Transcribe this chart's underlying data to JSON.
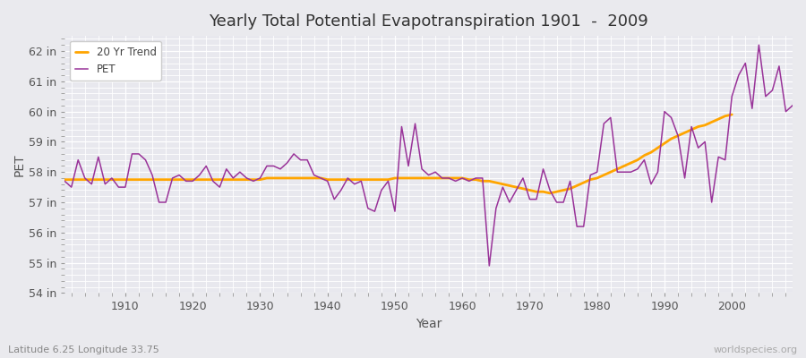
{
  "title": "Yearly Total Potential Evapotranspiration 1901  -  2009",
  "xlabel": "Year",
  "ylabel": "PET",
  "footnote_left": "Latitude 6.25 Longitude 33.75",
  "footnote_right": "worldspecies.org",
  "years": [
    1901,
    1902,
    1903,
    1904,
    1905,
    1906,
    1907,
    1908,
    1909,
    1910,
    1911,
    1912,
    1913,
    1914,
    1915,
    1916,
    1917,
    1918,
    1919,
    1920,
    1921,
    1922,
    1923,
    1924,
    1925,
    1926,
    1927,
    1928,
    1929,
    1930,
    1931,
    1932,
    1933,
    1934,
    1935,
    1936,
    1937,
    1938,
    1939,
    1940,
    1941,
    1942,
    1943,
    1944,
    1945,
    1946,
    1947,
    1948,
    1949,
    1950,
    1951,
    1952,
    1953,
    1954,
    1955,
    1956,
    1957,
    1958,
    1959,
    1960,
    1961,
    1962,
    1963,
    1964,
    1965,
    1966,
    1967,
    1968,
    1969,
    1970,
    1971,
    1972,
    1973,
    1974,
    1975,
    1976,
    1977,
    1978,
    1979,
    1980,
    1981,
    1982,
    1983,
    1984,
    1985,
    1986,
    1987,
    1988,
    1989,
    1990,
    1991,
    1992,
    1993,
    1994,
    1995,
    1996,
    1997,
    1998,
    1999,
    2000,
    2001,
    2002,
    2003,
    2004,
    2005,
    2006,
    2007,
    2008,
    2009
  ],
  "pet": [
    57.7,
    57.5,
    58.4,
    57.8,
    57.6,
    58.5,
    57.6,
    57.8,
    57.5,
    57.5,
    58.6,
    58.6,
    58.4,
    57.9,
    57.0,
    57.0,
    57.8,
    57.9,
    57.7,
    57.7,
    57.9,
    58.2,
    57.7,
    57.5,
    58.1,
    57.8,
    58.0,
    57.8,
    57.7,
    57.8,
    58.2,
    58.2,
    58.1,
    58.3,
    58.6,
    58.4,
    58.4,
    57.9,
    57.8,
    57.7,
    57.1,
    57.4,
    57.8,
    57.6,
    57.7,
    56.8,
    56.7,
    57.4,
    57.7,
    56.7,
    59.5,
    58.2,
    59.6,
    58.1,
    57.9,
    58.0,
    57.8,
    57.8,
    57.7,
    57.8,
    57.7,
    57.8,
    57.8,
    54.9,
    56.8,
    57.5,
    57.0,
    57.4,
    57.8,
    57.1,
    57.1,
    58.1,
    57.4,
    57.0,
    57.0,
    57.7,
    56.2,
    56.2,
    57.9,
    58.0,
    59.6,
    59.8,
    58.0,
    58.0,
    58.0,
    58.1,
    58.4,
    57.6,
    58.0,
    60.0,
    59.8,
    59.2,
    57.8,
    59.5,
    58.8,
    59.0,
    57.0,
    58.5,
    58.4,
    60.5,
    61.2,
    61.6,
    60.1,
    62.2,
    60.5,
    60.7,
    61.5,
    60.0,
    60.2
  ],
  "trend": [
    57.75,
    57.75,
    57.75,
    57.75,
    57.75,
    57.75,
    57.75,
    57.75,
    57.75,
    57.75,
    57.75,
    57.75,
    57.75,
    57.75,
    57.75,
    57.75,
    57.75,
    57.75,
    57.75,
    57.75,
    57.75,
    57.75,
    57.75,
    57.75,
    57.75,
    57.75,
    57.75,
    57.75,
    57.75,
    57.75,
    57.8,
    57.8,
    57.8,
    57.8,
    57.8,
    57.8,
    57.8,
    57.8,
    57.8,
    57.75,
    57.75,
    57.75,
    57.75,
    57.75,
    57.75,
    57.75,
    57.75,
    57.75,
    57.75,
    57.8,
    57.8,
    57.8,
    57.8,
    57.8,
    57.8,
    57.8,
    57.8,
    57.8,
    57.8,
    57.8,
    57.75,
    57.75,
    57.7,
    57.7,
    57.65,
    57.6,
    57.55,
    57.5,
    57.45,
    57.4,
    57.35,
    57.35,
    57.3,
    57.35,
    57.4,
    57.45,
    57.55,
    57.65,
    57.75,
    57.8,
    57.9,
    58.0,
    58.1,
    58.2,
    58.3,
    58.4,
    58.55,
    58.65,
    58.8,
    58.95,
    59.1,
    59.2,
    59.3,
    59.4,
    59.5,
    59.55,
    59.65,
    59.75,
    59.85,
    59.9,
    null,
    null,
    null,
    null,
    null,
    null,
    null,
    null,
    null
  ],
  "pet_color": "#993399",
  "trend_color": "#FFA500",
  "bg_color": "#EAEAEE",
  "plot_bg_color": "#E8E8EE",
  "grid_color": "#FFFFFF",
  "ylim": [
    54,
    62.5
  ],
  "yticks": [
    54,
    55,
    56,
    57,
    58,
    59,
    60,
    61,
    62
  ],
  "ytick_labels": [
    "54 in",
    "55 in",
    "56 in",
    "57 in",
    "58 in",
    "59 in",
    "60 in",
    "61 in",
    "62 in"
  ],
  "xticks": [
    1910,
    1920,
    1930,
    1940,
    1950,
    1960,
    1970,
    1980,
    1990,
    2000
  ],
  "xlim": [
    1901,
    2009
  ],
  "title_fontsize": 13,
  "axis_fontsize": 9,
  "legend_fontsize": 8.5
}
